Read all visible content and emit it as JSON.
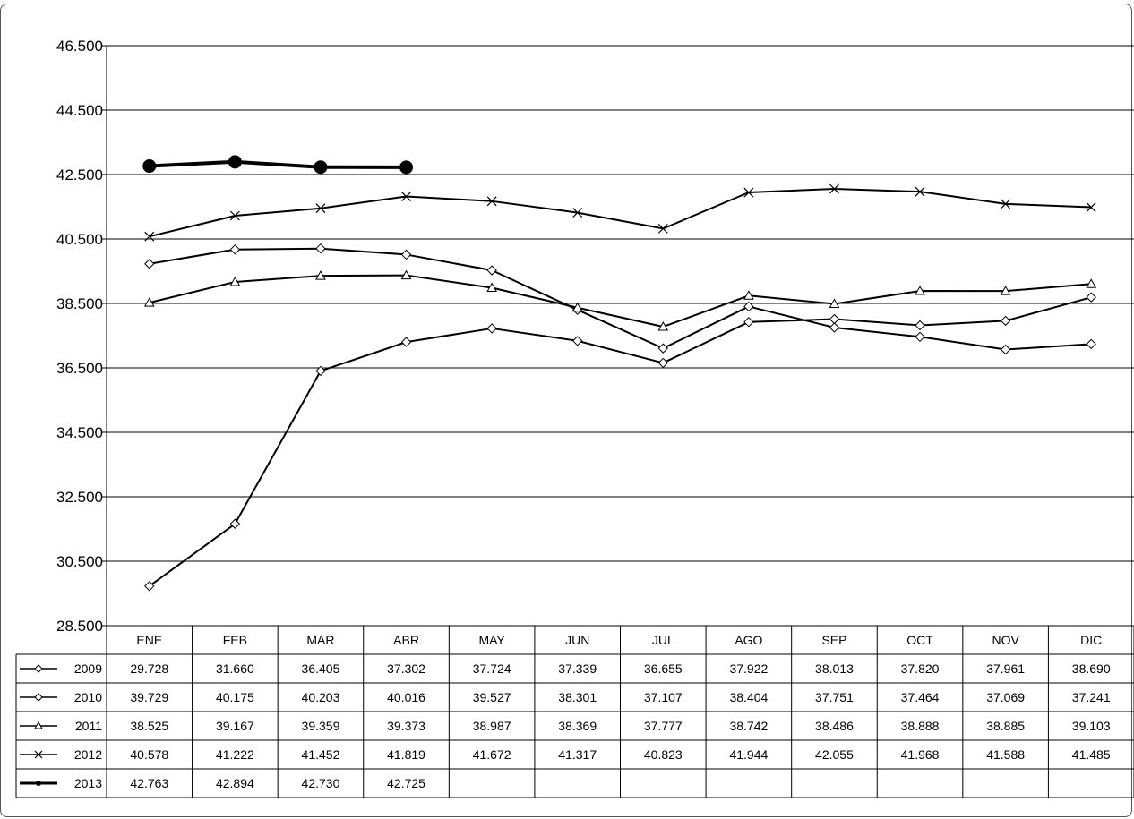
{
  "chart_data": {
    "type": "line",
    "title": "",
    "xlabel": "",
    "ylabel": "",
    "ylim": [
      28500,
      46500
    ],
    "y_tick_values": [
      28500,
      30500,
      32500,
      34500,
      36500,
      38500,
      40500,
      42500,
      44500,
      46500
    ],
    "y_tick_labels": [
      "28.500",
      "30.500",
      "32.500",
      "34.500",
      "36.500",
      "38.500",
      "40.500",
      "42.500",
      "44.500",
      "46.500"
    ],
    "grid": true,
    "legend": "data-table-left",
    "categories": [
      "ENE",
      "FEB",
      "MAR",
      "ABR",
      "MAY",
      "JUN",
      "JUL",
      "AGO",
      "SEP",
      "OCT",
      "NOV",
      "DIC"
    ],
    "series": [
      {
        "name": "2009",
        "marker": "diamond-open",
        "values": [
          29728,
          31660,
          36405,
          37302,
          37724,
          37339,
          36655,
          37922,
          38013,
          37820,
          37961,
          38690
        ],
        "labels": [
          "29.728",
          "31.660",
          "36.405",
          "37.302",
          "37.724",
          "37.339",
          "36.655",
          "37.922",
          "38.013",
          "37.820",
          "37.961",
          "38.690"
        ]
      },
      {
        "name": "2010",
        "marker": "diamond-open",
        "values": [
          39729,
          40175,
          40203,
          40016,
          39527,
          38301,
          37107,
          38404,
          37751,
          37464,
          37069,
          37241
        ],
        "labels": [
          "39.729",
          "40.175",
          "40.203",
          "40.016",
          "39.527",
          "38.301",
          "37.107",
          "38.404",
          "37.751",
          "37.464",
          "37.069",
          "37.241"
        ]
      },
      {
        "name": "2011",
        "marker": "triangle-open",
        "values": [
          38525,
          39167,
          39359,
          39373,
          38987,
          38369,
          37777,
          38742,
          38486,
          38888,
          38885,
          39103
        ],
        "labels": [
          "38.525",
          "39.167",
          "39.359",
          "39.373",
          "38.987",
          "38.369",
          "37.777",
          "38.742",
          "38.486",
          "38.888",
          "38.885",
          "39.103"
        ]
      },
      {
        "name": "2012",
        "marker": "x",
        "values": [
          40578,
          41222,
          41452,
          41819,
          41672,
          41317,
          40823,
          41944,
          42055,
          41968,
          41588,
          41485
        ],
        "labels": [
          "40.578",
          "41.222",
          "41.452",
          "41.819",
          "41.672",
          "41.317",
          "40.823",
          "41.944",
          "42.055",
          "41.968",
          "41.588",
          "41.485"
        ]
      },
      {
        "name": "2013",
        "marker": "circle-filled",
        "values": [
          42763,
          42894,
          42730,
          42725,
          null,
          null,
          null,
          null,
          null,
          null,
          null,
          null
        ],
        "labels": [
          "42.763",
          "42.894",
          "42.730",
          "42.725",
          "",
          "",
          "",
          "",
          "",
          "",
          "",
          ""
        ]
      }
    ],
    "colors": {
      "line": "#000000",
      "grid": "#000000",
      "background": "#ffffff"
    }
  }
}
